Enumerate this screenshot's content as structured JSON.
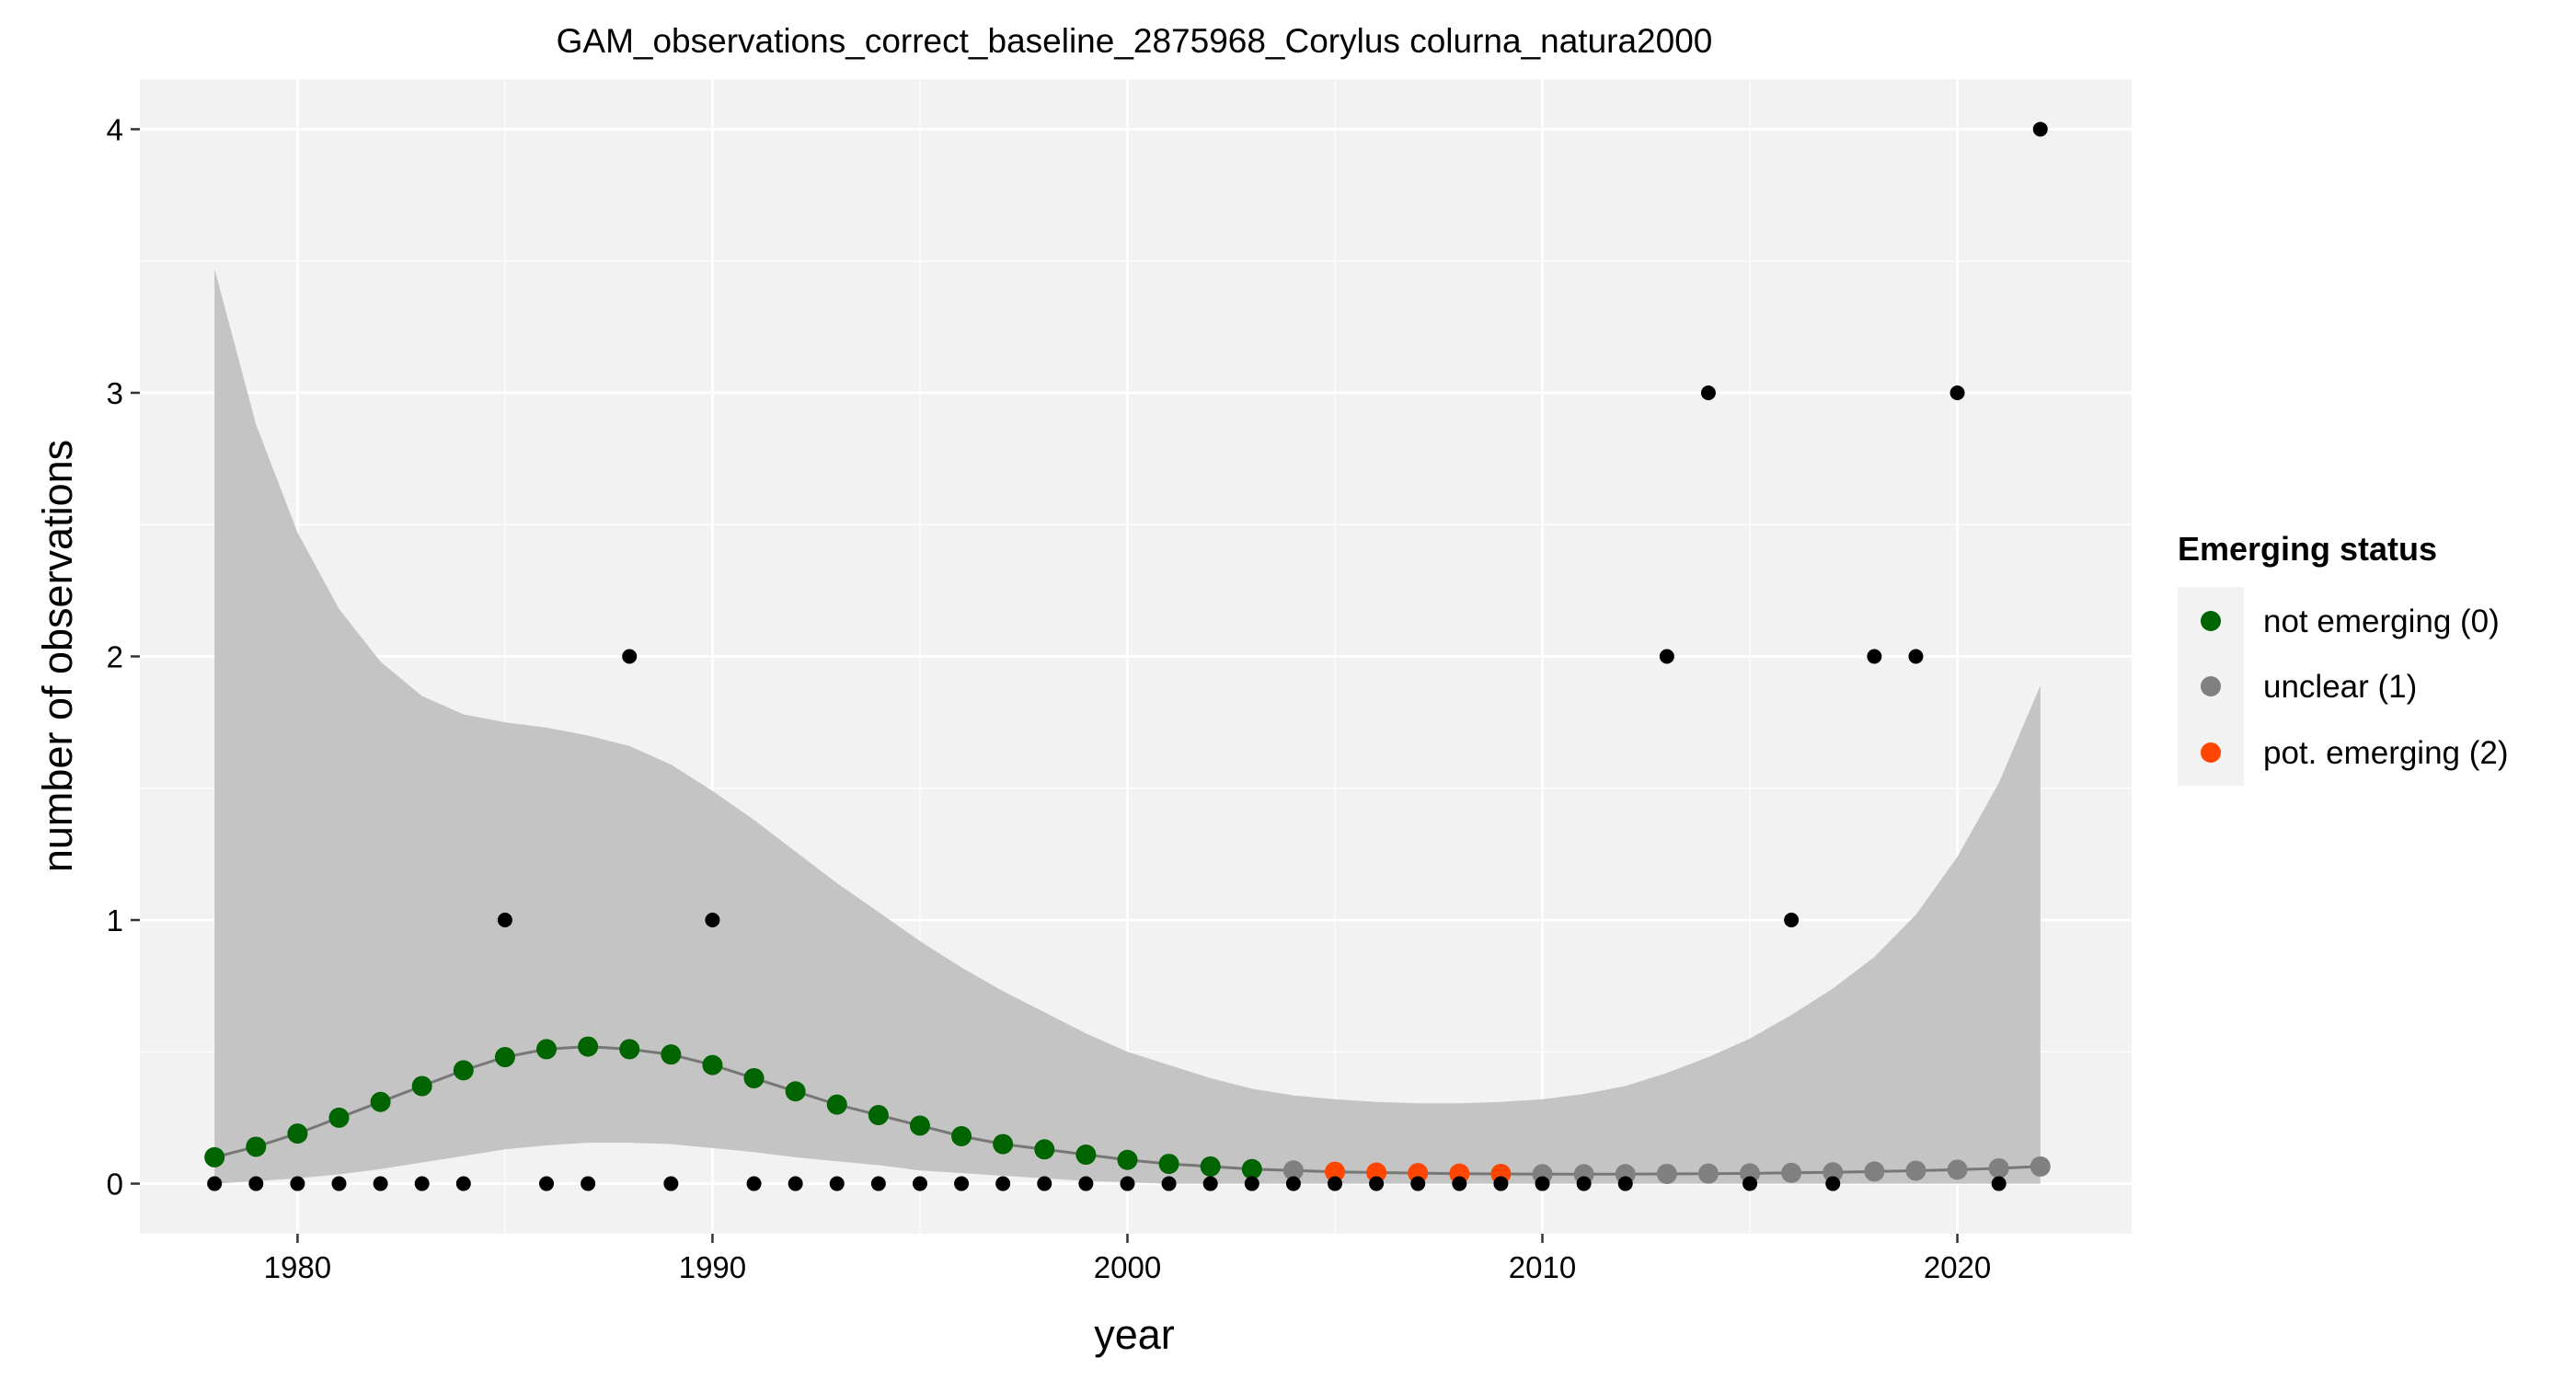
{
  "chart_data": {
    "type": "scatter",
    "title": "GAM_observations_correct_baseline_2875968_Corylus colurna_natura2000",
    "xlabel": "year",
    "ylabel": "number of observations",
    "xlim": [
      1976.2,
      2024.2
    ],
    "ylim": [
      -0.19,
      4.19
    ],
    "x_ticks": [
      1980,
      1990,
      2000,
      2010,
      2020
    ],
    "y_ticks": [
      0,
      1,
      2,
      3,
      4
    ],
    "grid": true,
    "legend": {
      "title": "Emerging status",
      "position": "right",
      "entries": [
        {
          "label": "not emerging (0)",
          "color": "#006400"
        },
        {
          "label": "unclear (1)",
          "color": "#808080"
        },
        {
          "label": "pot. emerging (2)",
          "color": "#ff4500"
        }
      ]
    },
    "colors": {
      "panel_background": "#f2f2f2",
      "grid": "#ffffff",
      "ribbon": "#c4c4c4",
      "fit_line": "#777777",
      "observation": "#000000"
    },
    "observations": {
      "x": [
        1978,
        1979,
        1980,
        1981,
        1982,
        1983,
        1984,
        1985,
        1986,
        1987,
        1988,
        1989,
        1990,
        1991,
        1992,
        1993,
        1994,
        1995,
        1996,
        1997,
        1998,
        1999,
        2000,
        2001,
        2002,
        2003,
        2004,
        2005,
        2006,
        2007,
        2008,
        2009,
        2010,
        2011,
        2012,
        2013,
        2014,
        2015,
        2016,
        2017,
        2018,
        2019,
        2020,
        2021,
        2022
      ],
      "y": [
        0,
        0,
        0,
        0,
        0,
        0,
        0,
        1,
        0,
        0,
        2,
        0,
        1,
        0,
        0,
        0,
        0,
        0,
        0,
        0,
        0,
        0,
        0,
        0,
        0,
        0,
        0,
        0,
        0,
        0,
        0,
        0,
        0,
        0,
        0,
        2,
        3,
        0,
        1,
        0,
        2,
        2,
        3,
        0,
        4
      ]
    },
    "gam_fit": {
      "x": [
        1978,
        1979,
        1980,
        1981,
        1982,
        1983,
        1984,
        1985,
        1986,
        1987,
        1988,
        1989,
        1990,
        1991,
        1992,
        1993,
        1994,
        1995,
        1996,
        1997,
        1998,
        1999,
        2000,
        2001,
        2002,
        2003,
        2004,
        2005,
        2006,
        2007,
        2008,
        2009,
        2010,
        2011,
        2012,
        2013,
        2014,
        2015,
        2016,
        2017,
        2018,
        2019,
        2020,
        2021,
        2022
      ],
      "y": [
        0.1,
        0.14,
        0.19,
        0.25,
        0.31,
        0.37,
        0.43,
        0.48,
        0.51,
        0.52,
        0.51,
        0.49,
        0.45,
        0.4,
        0.35,
        0.3,
        0.26,
        0.22,
        0.18,
        0.15,
        0.13,
        0.11,
        0.09,
        0.075,
        0.065,
        0.055,
        0.05,
        0.045,
        0.042,
        0.04,
        0.038,
        0.037,
        0.036,
        0.036,
        0.036,
        0.037,
        0.038,
        0.039,
        0.041,
        0.043,
        0.046,
        0.049,
        0.053,
        0.058,
        0.065
      ],
      "lower": [
        0,
        0.01,
        0.02,
        0.035,
        0.055,
        0.08,
        0.105,
        0.13,
        0.145,
        0.155,
        0.155,
        0.15,
        0.135,
        0.12,
        0.1,
        0.085,
        0.07,
        0.05,
        0.04,
        0.03,
        0.02,
        0.01,
        0.005,
        0,
        0,
        0,
        0,
        0,
        0,
        0,
        0,
        0,
        0,
        0,
        0,
        0,
        0,
        0,
        0,
        0,
        0,
        0,
        0,
        0,
        0
      ],
      "upper": [
        3.47,
        2.88,
        2.47,
        2.18,
        1.98,
        1.85,
        1.78,
        1.75,
        1.73,
        1.7,
        1.66,
        1.59,
        1.49,
        1.38,
        1.26,
        1.14,
        1.03,
        0.92,
        0.82,
        0.73,
        0.65,
        0.57,
        0.5,
        0.45,
        0.4,
        0.36,
        0.335,
        0.32,
        0.31,
        0.305,
        0.305,
        0.31,
        0.32,
        0.34,
        0.37,
        0.42,
        0.48,
        0.55,
        0.64,
        0.74,
        0.86,
        1.02,
        1.24,
        1.52,
        1.89
      ],
      "status": [
        0,
        0,
        0,
        0,
        0,
        0,
        0,
        0,
        0,
        0,
        0,
        0,
        0,
        0,
        0,
        0,
        0,
        0,
        0,
        0,
        0,
        0,
        0,
        0,
        0,
        0,
        1,
        2,
        2,
        2,
        2,
        2,
        1,
        1,
        1,
        1,
        1,
        1,
        1,
        1,
        1,
        1,
        1,
        1,
        1
      ]
    }
  }
}
